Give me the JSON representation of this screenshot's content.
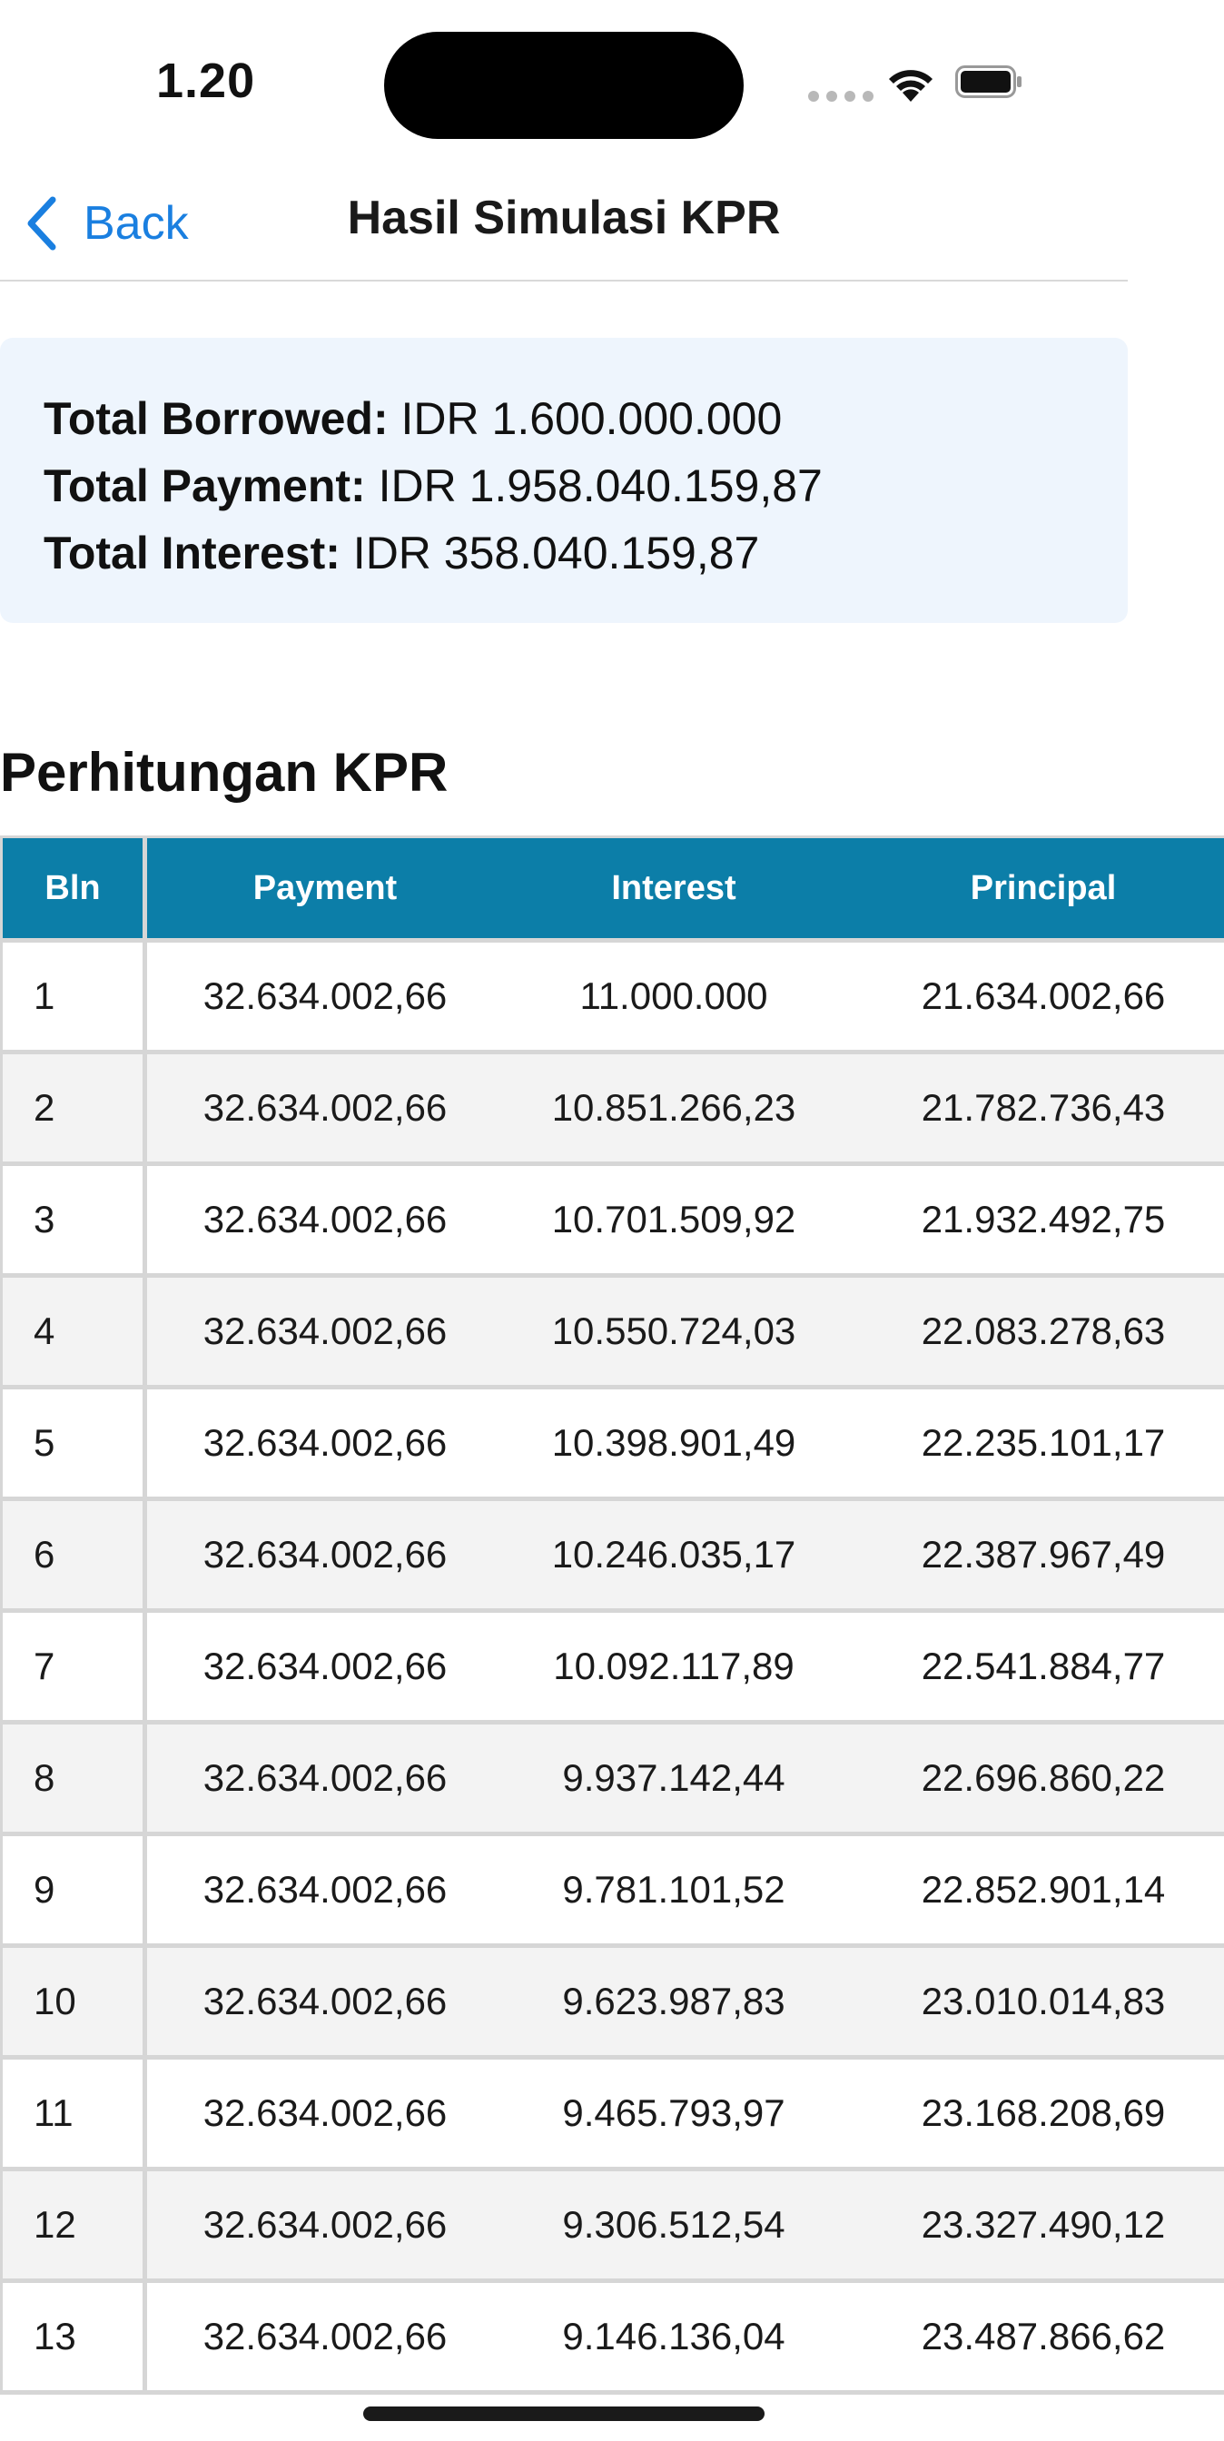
{
  "status": {
    "time": "1.20"
  },
  "nav": {
    "back_label": "Back",
    "title": "Hasil Simulasi KPR"
  },
  "summary": {
    "borrowed_label": "Total Borrowed:",
    "borrowed_value": "IDR 1.600.000.000",
    "payment_label": "Total Payment:",
    "payment_value": "IDR 1.958.040.159,87",
    "interest_label": "Total Interest:",
    "interest_value": "IDR 358.040.159,87"
  },
  "section_title": "Perhitungan KPR",
  "table": {
    "headers": [
      "Bln",
      "Payment",
      "Interest",
      "Principal"
    ],
    "rows": [
      [
        "1",
        "32.634.002,66",
        "11.000.000",
        "21.634.002,66"
      ],
      [
        "2",
        "32.634.002,66",
        "10.851.266,23",
        "21.782.736,43"
      ],
      [
        "3",
        "32.634.002,66",
        "10.701.509,92",
        "21.932.492,75"
      ],
      [
        "4",
        "32.634.002,66",
        "10.550.724,03",
        "22.083.278,63"
      ],
      [
        "5",
        "32.634.002,66",
        "10.398.901,49",
        "22.235.101,17"
      ],
      [
        "6",
        "32.634.002,66",
        "10.246.035,17",
        "22.387.967,49"
      ],
      [
        "7",
        "32.634.002,66",
        "10.092.117,89",
        "22.541.884,77"
      ],
      [
        "8",
        "32.634.002,66",
        "9.937.142,44",
        "22.696.860,22"
      ],
      [
        "9",
        "32.634.002,66",
        "9.781.101,52",
        "22.852.901,14"
      ],
      [
        "10",
        "32.634.002,66",
        "9.623.987,83",
        "23.010.014,83"
      ],
      [
        "11",
        "32.634.002,66",
        "9.465.793,97",
        "23.168.208,69"
      ],
      [
        "12",
        "32.634.002,66",
        "9.306.512,54",
        "23.327.490,12"
      ],
      [
        "13",
        "32.634.002,66",
        "9.146.136,04",
        "23.487.866,62"
      ]
    ]
  },
  "colors": {
    "accent": "#1a7fe0",
    "table_header": "#0c7ea8",
    "summary_bg": "#eef5fd"
  }
}
